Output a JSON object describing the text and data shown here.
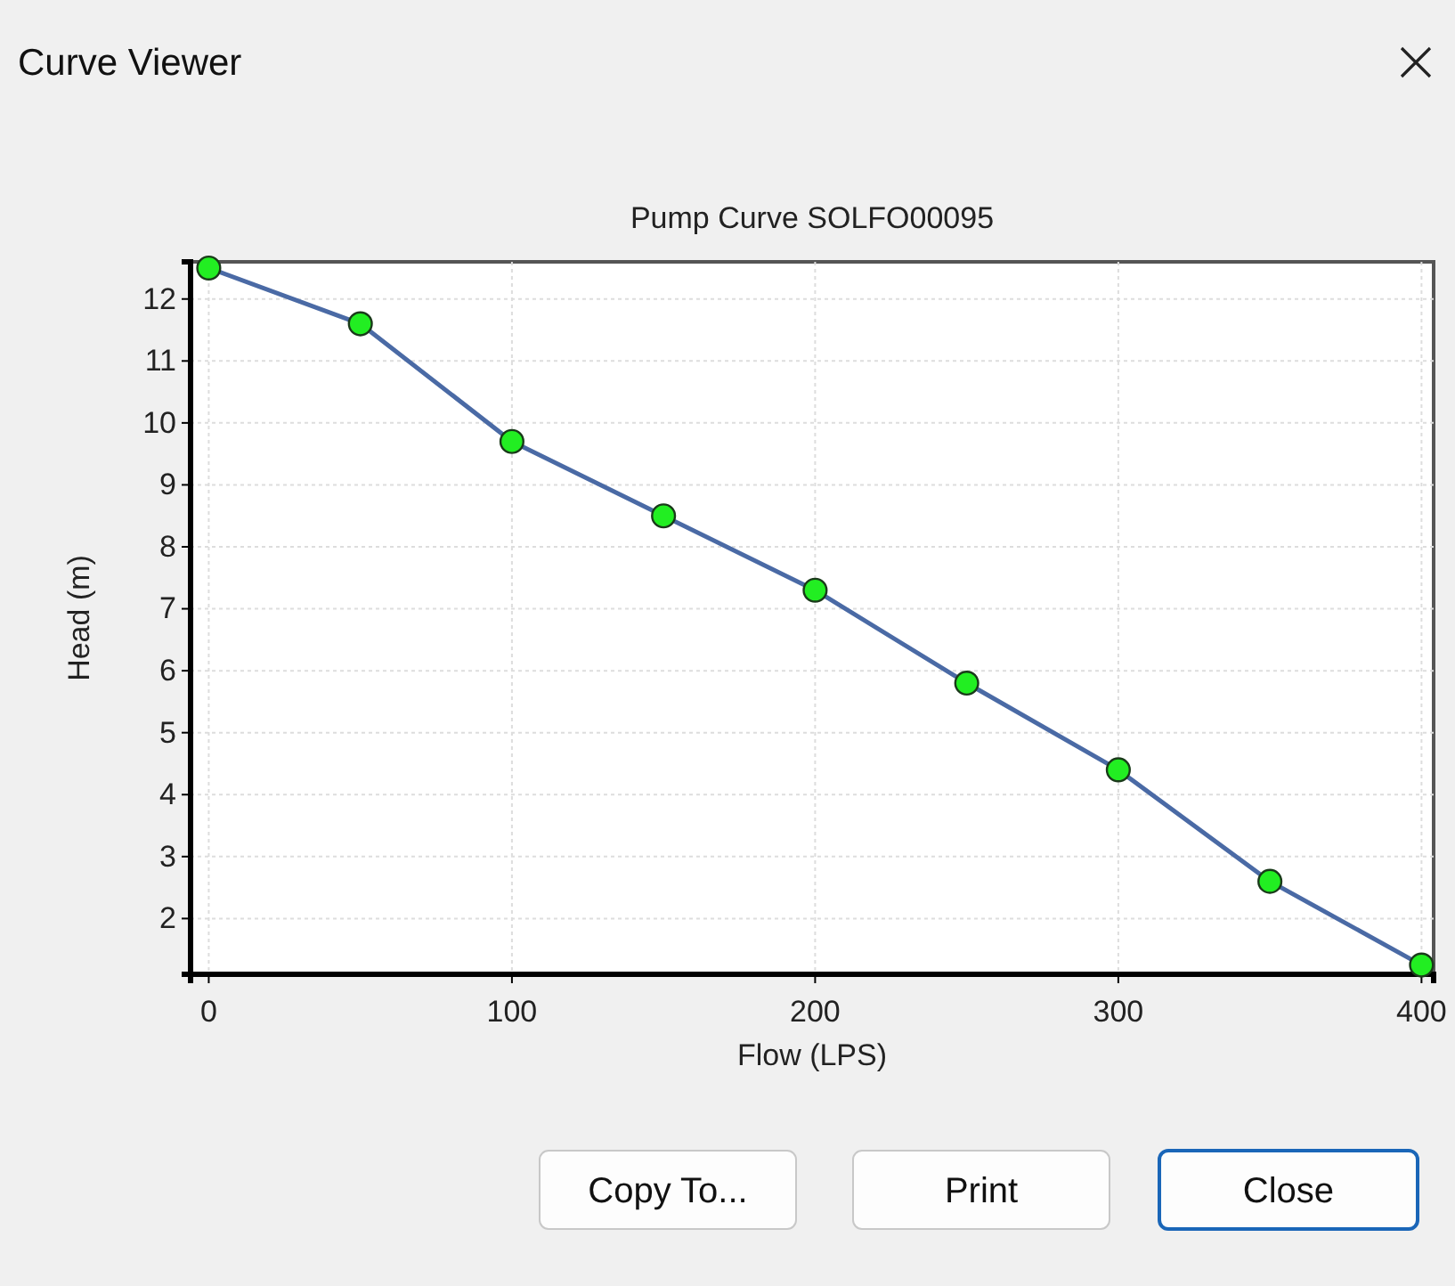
{
  "chart_data": {
    "type": "line",
    "title": "Pump Curve SOLFO00095",
    "xlabel": "Flow (LPS)",
    "ylabel": "Head (m)",
    "annotations": [
      "Curve Viewer",
      "Copy To...",
      "Print",
      "Close"
    ],
    "x": [
      0,
      50,
      100,
      150,
      200,
      250,
      300,
      350,
      400
    ],
    "series": [
      {
        "color": "#4a6aa5",
        "values": [
          12.5,
          11.6,
          9.7,
          8.5,
          7.3,
          5.8,
          4.4,
          2.6,
          1.25
        ]
      }
    ],
    "xlim": [
      -6,
      404
    ],
    "xticks": [
      0,
      100,
      200,
      300,
      400
    ],
    "ylim": [
      1.1,
      12.6
    ],
    "yticks": [
      2,
      3,
      4,
      5,
      6,
      7,
      8,
      9,
      10,
      11,
      12
    ],
    "grid": true,
    "marker": "circle",
    "line_style": "solid"
  }
}
